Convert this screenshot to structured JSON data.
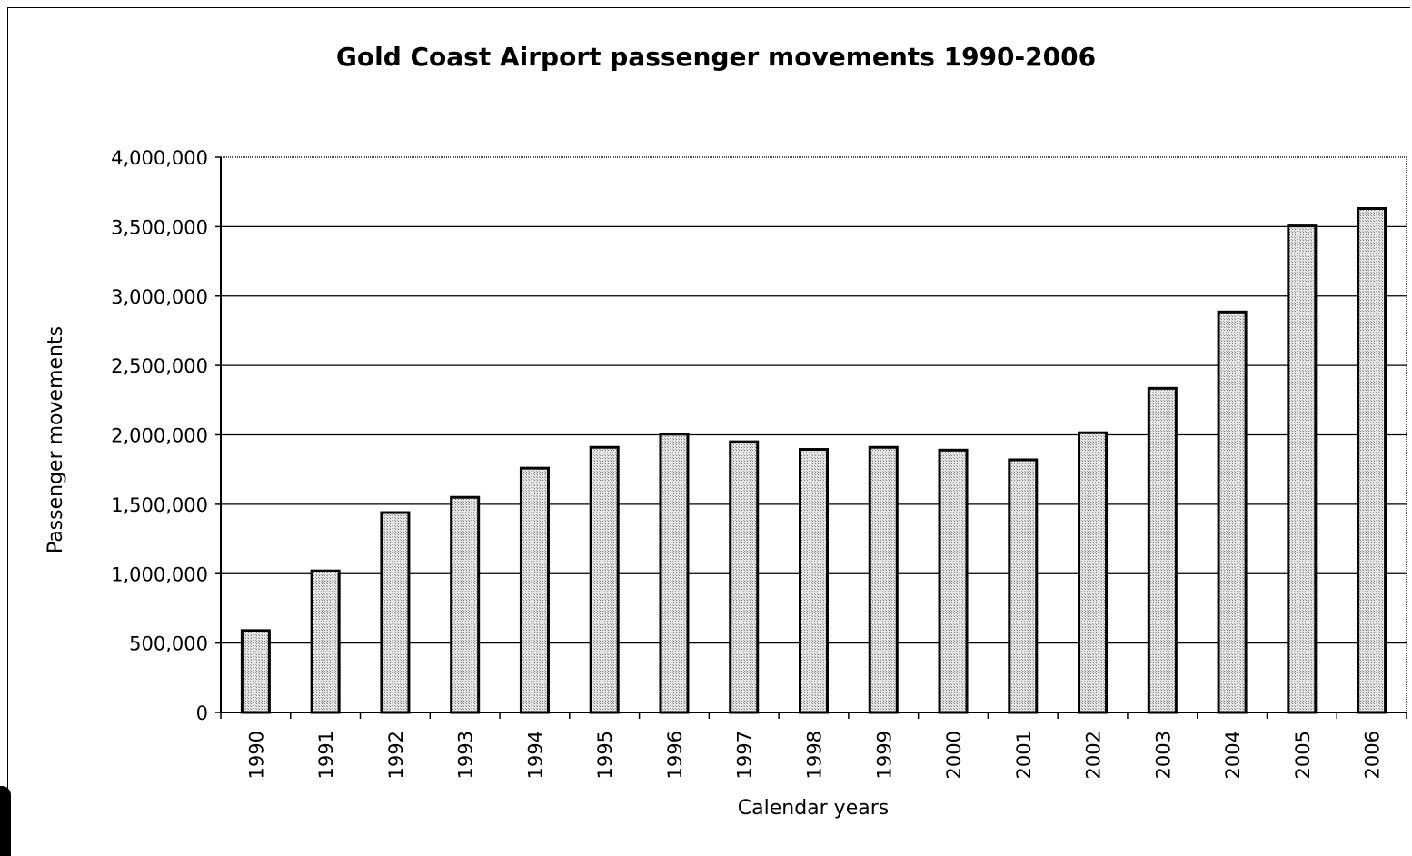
{
  "chart_data": {
    "type": "bar",
    "title": "Gold Coast Airport passenger movements 1990-2006",
    "xlabel": "Calendar years",
    "ylabel": "Passenger movements",
    "categories": [
      "1990",
      "1991",
      "1992",
      "1993",
      "1994",
      "1995",
      "1996",
      "1997",
      "1998",
      "1999",
      "2000",
      "2001",
      "2002",
      "2003",
      "2004",
      "2005",
      "2006"
    ],
    "values": [
      590000,
      1020000,
      1440000,
      1550000,
      1760000,
      1910000,
      2005000,
      1950000,
      1895000,
      1910000,
      1890000,
      1820000,
      2015000,
      2335000,
      2885000,
      3505000,
      3630000
    ],
    "ylim": [
      0,
      4000000
    ],
    "yticks": [
      0,
      500000,
      1000000,
      1500000,
      2000000,
      2500000,
      3000000,
      3500000,
      4000000
    ],
    "ytick_labels": [
      "0",
      "500,000",
      "1,000,000",
      "1,500,000",
      "2,000,000",
      "2,500,000",
      "3,000,000",
      "3,500,000",
      "4,000,000"
    ],
    "grid": true,
    "bar_fill": "#cfcfcf",
    "bar_stroke": "#000000"
  }
}
